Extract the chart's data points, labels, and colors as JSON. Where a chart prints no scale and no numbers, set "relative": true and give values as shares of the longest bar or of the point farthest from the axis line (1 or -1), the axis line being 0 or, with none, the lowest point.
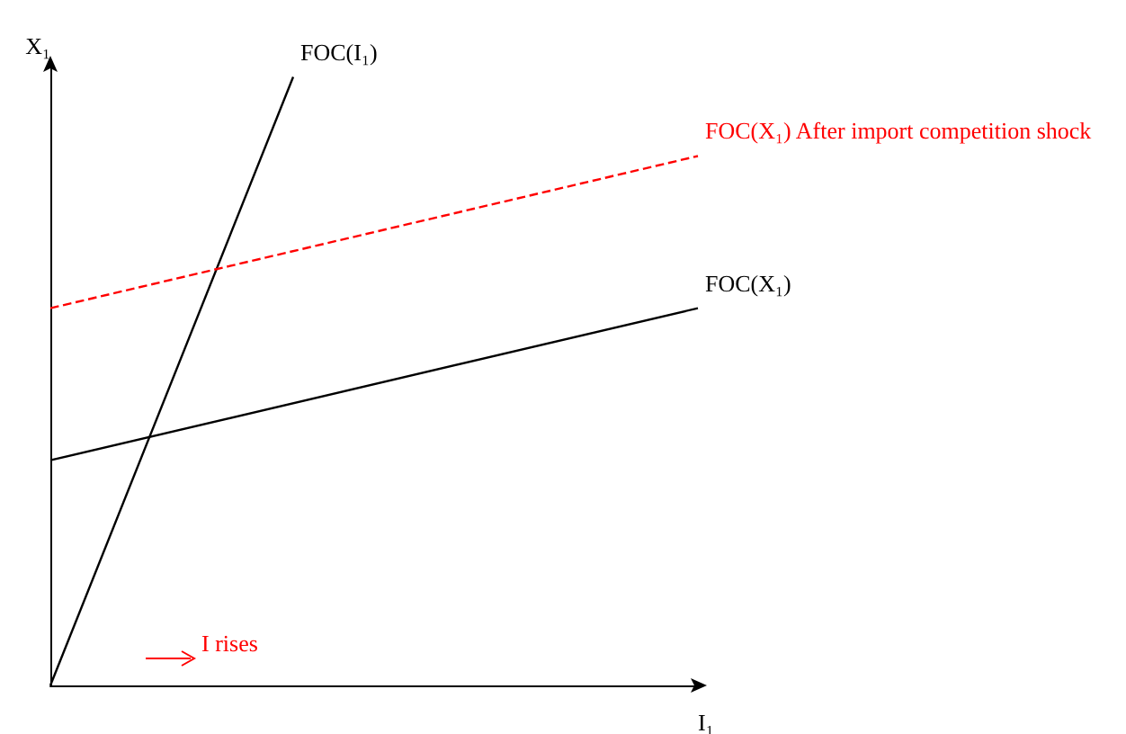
{
  "chart_data": {
    "type": "line",
    "relative": true,
    "xlabel": "I₁",
    "ylabel": "X₁",
    "legend": false,
    "grid": false,
    "marker": "none",
    "categories": [
      null,
      null,
      null,
      null,
      null,
      null,
      null,
      null,
      null
    ],
    "annotations": [
      "I rises"
    ],
    "series": [
      {
        "name": "FOC(I₁)",
        "color": "#000000",
        "values": [
          0,
          null,
          null,
          1,
          null,
          null,
          null,
          null,
          null
        ],
        "line_style": "solid"
      },
      {
        "name": "FOC(X₁)",
        "color": "#000000",
        "values": [
          0.37,
          null,
          null,
          null,
          null,
          null,
          null,
          null,
          0.62
        ],
        "line_style": "solid"
      },
      {
        "name": "FOC(X₁) After import competition shock",
        "color": "#ff0000",
        "values": [
          0.62,
          null,
          null,
          null,
          null,
          null,
          null,
          null,
          0.87
        ],
        "line_style": "dashed"
      }
    ]
  }
}
